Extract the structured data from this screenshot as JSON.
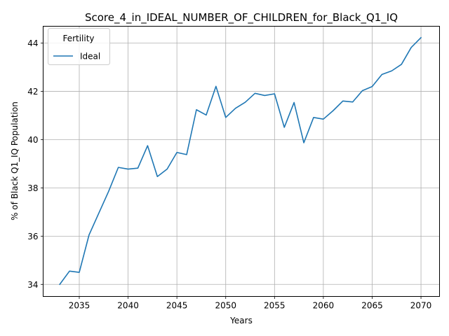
{
  "chart_data": {
    "type": "line",
    "title": "Score_4_in_IDEAL_NUMBER_OF_CHILDREN_for_Black_Q1_IQ",
    "xlabel": "Years",
    "ylabel": "% of Black Q1_IQ Population",
    "xlim": [
      2031.3,
      2071.9
    ],
    "ylim": [
      33.5,
      44.7
    ],
    "xticks": [
      2035,
      2040,
      2045,
      2050,
      2055,
      2060,
      2065,
      2070
    ],
    "yticks": [
      34,
      36,
      38,
      40,
      42,
      44
    ],
    "grid": true,
    "legend": {
      "title": "Fertility",
      "position": "upper-left"
    },
    "series": [
      {
        "name": "Ideal",
        "color": "#1f77b4",
        "x": [
          2033,
          2034,
          2035,
          2036,
          2037,
          2038,
          2039,
          2040,
          2041,
          2042,
          2043,
          2044,
          2045,
          2046,
          2047,
          2048,
          2049,
          2050,
          2051,
          2052,
          2053,
          2054,
          2055,
          2056,
          2057,
          2058,
          2059,
          2060,
          2061,
          2062,
          2063,
          2064,
          2065,
          2066,
          2067,
          2068,
          2069,
          2070
        ],
        "y": [
          34.0,
          34.55,
          34.5,
          36.05,
          36.95,
          37.85,
          38.85,
          38.78,
          38.82,
          39.75,
          38.47,
          38.78,
          39.47,
          39.38,
          41.24,
          41.02,
          42.21,
          40.92,
          41.3,
          41.55,
          41.92,
          41.83,
          41.9,
          40.51,
          41.54,
          39.87,
          40.92,
          40.85,
          41.2,
          41.6,
          41.56,
          42.03,
          42.2,
          42.7,
          42.85,
          43.12,
          43.82,
          44.23
        ]
      }
    ]
  }
}
